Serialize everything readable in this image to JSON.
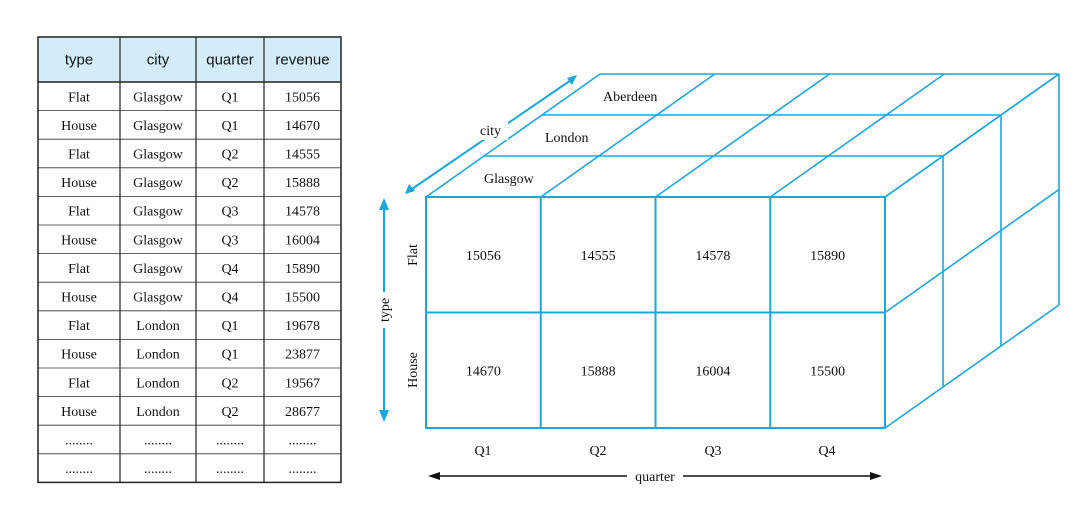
{
  "table": {
    "headers": [
      "type",
      "city",
      "quarter",
      "revenue"
    ],
    "rows": [
      [
        "Flat",
        "Glasgow",
        "Q1",
        "15056"
      ],
      [
        "House",
        "Glasgow",
        "Q1",
        "14670"
      ],
      [
        "Flat",
        "Glasgow",
        "Q2",
        "14555"
      ],
      [
        "House",
        "Glasgow",
        "Q2",
        "15888"
      ],
      [
        "Flat",
        "Glasgow",
        "Q3",
        "14578"
      ],
      [
        "House",
        "Glasgow",
        "Q3",
        "16004"
      ],
      [
        "Flat",
        "Glasgow",
        "Q4",
        "15890"
      ],
      [
        "House",
        "Glasgow",
        "Q4",
        "15500"
      ],
      [
        "Flat",
        "London",
        "Q1",
        "19678"
      ],
      [
        "House",
        "London",
        "Q1",
        "23877"
      ],
      [
        "Flat",
        "London",
        "Q2",
        "19567"
      ],
      [
        "House",
        "London",
        "Q2",
        "28677"
      ],
      [
        "........",
        "........",
        "........",
        "........"
      ],
      [
        "........",
        "........",
        "........",
        "........"
      ]
    ],
    "header_color": "#d3eef8"
  },
  "cube": {
    "cities": [
      "Glasgow",
      "London",
      "Aberdeen"
    ],
    "types": [
      "Flat",
      "House"
    ],
    "quarters": [
      "Q1",
      "Q2",
      "Q3",
      "Q4"
    ],
    "front_values": [
      [
        "15056",
        "14555",
        "14578",
        "15890"
      ],
      [
        "14670",
        "15888",
        "16004",
        "15500"
      ]
    ],
    "axis_city": "city",
    "axis_type": "type",
    "axis_quarter": "quarter",
    "line_color": "#1aa7dd"
  }
}
